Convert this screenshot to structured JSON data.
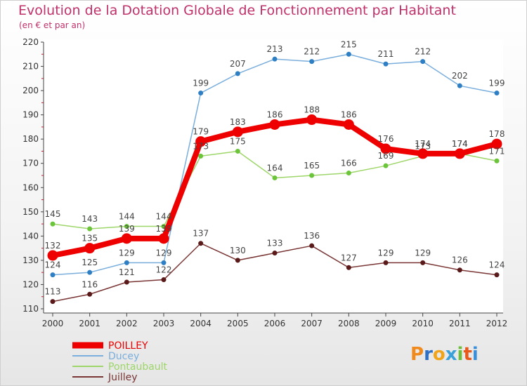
{
  "chart_data": {
    "type": "line",
    "title": "Evolution de la Dotation Globale de Fonctionnement par Habitant",
    "subtitle": "(en € et par an)",
    "xlabel": "",
    "ylabel": "",
    "ylim": [
      110,
      220
    ],
    "y_ticks": [
      110,
      120,
      130,
      140,
      150,
      160,
      170,
      180,
      190,
      200,
      210,
      220
    ],
    "categories": [
      "2000",
      "2001",
      "2002",
      "2003",
      "2004",
      "2005",
      "2006",
      "2007",
      "2008",
      "2009",
      "2010",
      "2011",
      "2012"
    ],
    "series": [
      {
        "name": "POILLEY",
        "color": "#ee0000",
        "values": [
          132,
          135,
          139,
          139,
          179,
          183,
          186,
          188,
          186,
          176,
          174,
          174,
          178
        ],
        "labels": [
          "132",
          "135",
          "139",
          "139",
          "179",
          "183",
          "186",
          "188",
          "186",
          "176",
          "174",
          "174",
          "178"
        ]
      },
      {
        "name": "Ducey",
        "color": "#7aaedc",
        "marker": "#2f7fc4",
        "values": [
          124,
          125,
          129,
          129,
          199,
          207,
          213,
          212,
          215,
          211,
          212,
          202,
          199
        ],
        "labels": [
          "124",
          "125",
          "129",
          "129",
          "199",
          "207",
          "213",
          "212",
          "215",
          "211",
          "212",
          "202",
          "199"
        ]
      },
      {
        "name": "Pontaubault",
        "color": "#9ed66a",
        "marker": "#6bc43a",
        "values": [
          145,
          143,
          144,
          144,
          173,
          175,
          164,
          165,
          166,
          169,
          173,
          174,
          171
        ],
        "labels": [
          "145",
          "143",
          "144",
          "144",
          "173",
          "175",
          "164",
          "165",
          "166",
          "169",
          "173",
          "174",
          "171"
        ]
      },
      {
        "name": "Juilley",
        "color": "#7a3535",
        "marker": "#5a1a1a",
        "values": [
          113,
          116,
          121,
          122,
          137,
          130,
          133,
          136,
          127,
          129,
          129,
          126,
          124
        ],
        "labels": [
          "113",
          "116",
          "121",
          "122",
          "137",
          "130",
          "133",
          "136",
          "127",
          "129",
          "129",
          "126",
          "124"
        ]
      }
    ],
    "legend": {
      "position": "bottom-left",
      "entries": [
        "POILLEY",
        "Ducey",
        "Pontaubault",
        "Juilley"
      ]
    }
  },
  "logo": {
    "letters": [
      "P",
      "r",
      "o",
      "x",
      "i",
      "t",
      "i"
    ],
    "colors": [
      "#f08a1c",
      "#2f6fc4",
      "#f0a41c",
      "#3aa0d8",
      "#6bbf3a",
      "#e85a1c",
      "#3a8fd8"
    ]
  }
}
